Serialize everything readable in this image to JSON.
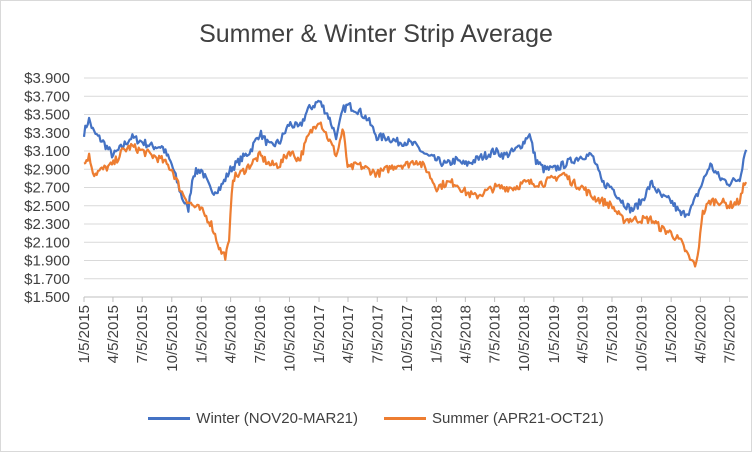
{
  "chart_data": {
    "type": "line",
    "title": "Summer & Winter Strip Average",
    "xlabel": "",
    "ylabel": "",
    "ylim": [
      1.5,
      3.9
    ],
    "y_ticks": [
      "$1.500",
      "$1.700",
      "$1.900",
      "$2.100",
      "$2.300",
      "$2.500",
      "$2.700",
      "$2.900",
      "$3.100",
      "$3.300",
      "$3.500",
      "$3.700",
      "$3.900"
    ],
    "x_ticks": [
      "1/5/2015",
      "4/5/2015",
      "7/5/2015",
      "10/5/2015",
      "1/5/2016",
      "4/5/2016",
      "7/5/2016",
      "10/5/2016",
      "1/5/2017",
      "4/5/2017",
      "7/5/2017",
      "10/5/2017",
      "1/5/2018",
      "4/5/2018",
      "7/5/2018",
      "10/5/2018",
      "1/5/2019",
      "4/5/2019",
      "7/5/2019",
      "10/5/2019",
      "1/5/2020",
      "4/5/2020",
      "7/5/2020"
    ],
    "grid": true,
    "legend_position": "bottom",
    "series": [
      {
        "name": "Winter (NOV20-MAR21)",
        "color": "#4472C4",
        "points": [
          [
            "1/5/2015",
            3.3
          ],
          [
            "1/20/2015",
            3.45
          ],
          [
            "2/5/2015",
            3.3
          ],
          [
            "3/5/2015",
            3.2
          ],
          [
            "4/5/2015",
            3.05
          ],
          [
            "5/5/2015",
            3.15
          ],
          [
            "6/1/2015",
            3.25
          ],
          [
            "7/5/2015",
            3.2
          ],
          [
            "8/5/2015",
            3.15
          ],
          [
            "9/5/2015",
            3.15
          ],
          [
            "10/5/2015",
            2.95
          ],
          [
            "11/5/2015",
            2.6
          ],
          [
            "11/25/2015",
            2.45
          ],
          [
            "12/10/2015",
            2.85
          ],
          [
            "1/5/2016",
            2.9
          ],
          [
            "2/5/2016",
            2.65
          ],
          [
            "3/5/2016",
            2.7
          ],
          [
            "4/5/2016",
            2.9
          ],
          [
            "5/5/2016",
            3.0
          ],
          [
            "6/5/2016",
            3.1
          ],
          [
            "7/5/2016",
            3.3
          ],
          [
            "8/5/2016",
            3.15
          ],
          [
            "9/5/2016",
            3.2
          ],
          [
            "10/5/2016",
            3.4
          ],
          [
            "11/5/2016",
            3.35
          ],
          [
            "12/1/2016",
            3.55
          ],
          [
            "1/5/2017",
            3.65
          ],
          [
            "2/1/2017",
            3.5
          ],
          [
            "3/1/2017",
            3.25
          ],
          [
            "3/20/2017",
            3.55
          ],
          [
            "4/5/2017",
            3.6
          ],
          [
            "5/5/2017",
            3.55
          ],
          [
            "6/5/2017",
            3.45
          ],
          [
            "7/5/2017",
            3.25
          ],
          [
            "8/5/2017",
            3.25
          ],
          [
            "9/5/2017",
            3.2
          ],
          [
            "10/5/2017",
            3.2
          ],
          [
            "11/5/2017",
            3.15
          ],
          [
            "12/5/2017",
            3.05
          ],
          [
            "1/5/2018",
            3.0
          ],
          [
            "2/5/2018",
            2.95
          ],
          [
            "3/5/2018",
            3.0
          ],
          [
            "4/5/2018",
            2.95
          ],
          [
            "5/5/2018",
            3.0
          ],
          [
            "6/5/2018",
            3.05
          ],
          [
            "7/5/2018",
            3.1
          ],
          [
            "8/5/2018",
            3.05
          ],
          [
            "9/5/2018",
            3.1
          ],
          [
            "10/5/2018",
            3.2
          ],
          [
            "10/20/2018",
            3.3
          ],
          [
            "11/10/2018",
            3.0
          ],
          [
            "12/5/2018",
            2.9
          ],
          [
            "1/5/2019",
            2.9
          ],
          [
            "2/5/2019",
            2.95
          ],
          [
            "3/5/2019",
            3.0
          ],
          [
            "4/5/2019",
            3.05
          ],
          [
            "5/5/2019",
            3.05
          ],
          [
            "6/5/2019",
            2.75
          ],
          [
            "7/5/2019",
            2.7
          ],
          [
            "8/5/2019",
            2.55
          ],
          [
            "9/5/2019",
            2.45
          ],
          [
            "10/5/2019",
            2.55
          ],
          [
            "11/5/2019",
            2.75
          ],
          [
            "12/5/2019",
            2.6
          ],
          [
            "1/5/2020",
            2.55
          ],
          [
            "2/5/2020",
            2.4
          ],
          [
            "3/5/2020",
            2.45
          ],
          [
            "4/5/2020",
            2.7
          ],
          [
            "5/5/2020",
            2.95
          ],
          [
            "6/5/2020",
            2.8
          ],
          [
            "7/5/2020",
            2.75
          ],
          [
            "8/5/2020",
            2.8
          ],
          [
            "8/25/2020",
            3.15
          ]
        ]
      },
      {
        "name": "Summer  (APR21-OCT21)",
        "color": "#ED7D31",
        "points": [
          [
            "1/5/2015",
            2.95
          ],
          [
            "1/20/2015",
            3.05
          ],
          [
            "2/5/2015",
            2.85
          ],
          [
            "3/5/2015",
            2.9
          ],
          [
            "4/5/2015",
            2.95
          ],
          [
            "5/5/2015",
            3.1
          ],
          [
            "6/1/2015",
            3.15
          ],
          [
            "7/5/2015",
            3.1
          ],
          [
            "8/5/2015",
            3.05
          ],
          [
            "9/5/2015",
            3.0
          ],
          [
            "10/5/2015",
            2.9
          ],
          [
            "11/5/2015",
            2.65
          ],
          [
            "11/25/2015",
            2.55
          ],
          [
            "12/10/2015",
            2.5
          ],
          [
            "1/5/2016",
            2.45
          ],
          [
            "2/5/2016",
            2.3
          ],
          [
            "3/5/2016",
            2.0
          ],
          [
            "3/20/2016",
            1.95
          ],
          [
            "4/1/2016",
            2.1
          ],
          [
            "4/10/2016",
            2.8
          ],
          [
            "5/5/2016",
            2.85
          ],
          [
            "6/5/2016",
            2.95
          ],
          [
            "7/5/2016",
            3.05
          ],
          [
            "8/5/2016",
            2.95
          ],
          [
            "9/5/2016",
            2.95
          ],
          [
            "10/5/2016",
            3.1
          ],
          [
            "11/5/2016",
            3.0
          ],
          [
            "12/1/2016",
            3.25
          ],
          [
            "1/5/2017",
            3.45
          ],
          [
            "2/1/2017",
            3.25
          ],
          [
            "3/1/2017",
            3.05
          ],
          [
            "3/20/2017",
            3.35
          ],
          [
            "4/5/2017",
            2.9
          ],
          [
            "5/5/2017",
            2.95
          ],
          [
            "6/5/2017",
            2.9
          ],
          [
            "7/5/2017",
            2.85
          ],
          [
            "8/5/2017",
            2.9
          ],
          [
            "9/5/2017",
            2.95
          ],
          [
            "10/5/2017",
            2.95
          ],
          [
            "11/5/2017",
            3.0
          ],
          [
            "12/5/2017",
            2.9
          ],
          [
            "1/5/2018",
            2.7
          ],
          [
            "2/5/2018",
            2.75
          ],
          [
            "3/5/2018",
            2.75
          ],
          [
            "4/5/2018",
            2.65
          ],
          [
            "5/5/2018",
            2.6
          ],
          [
            "6/5/2018",
            2.65
          ],
          [
            "7/5/2018",
            2.7
          ],
          [
            "8/5/2018",
            2.7
          ],
          [
            "9/5/2018",
            2.7
          ],
          [
            "10/5/2018",
            2.75
          ],
          [
            "11/5/2018",
            2.75
          ],
          [
            "12/5/2018",
            2.75
          ],
          [
            "1/5/2019",
            2.8
          ],
          [
            "2/5/2019",
            2.85
          ],
          [
            "3/5/2019",
            2.75
          ],
          [
            "4/5/2019",
            2.7
          ],
          [
            "5/5/2019",
            2.6
          ],
          [
            "6/5/2019",
            2.55
          ],
          [
            "7/5/2019",
            2.5
          ],
          [
            "8/5/2019",
            2.35
          ],
          [
            "9/5/2019",
            2.35
          ],
          [
            "10/5/2019",
            2.35
          ],
          [
            "11/5/2019",
            2.35
          ],
          [
            "12/5/2019",
            2.25
          ],
          [
            "1/5/2020",
            2.2
          ],
          [
            "2/5/2020",
            2.1
          ],
          [
            "3/5/2020",
            1.9
          ],
          [
            "3/25/2020",
            1.85
          ],
          [
            "4/10/2020",
            2.4
          ],
          [
            "5/5/2020",
            2.55
          ],
          [
            "6/5/2020",
            2.55
          ],
          [
            "7/5/2020",
            2.5
          ],
          [
            "8/5/2020",
            2.55
          ],
          [
            "8/25/2020",
            2.8
          ]
        ]
      }
    ]
  }
}
